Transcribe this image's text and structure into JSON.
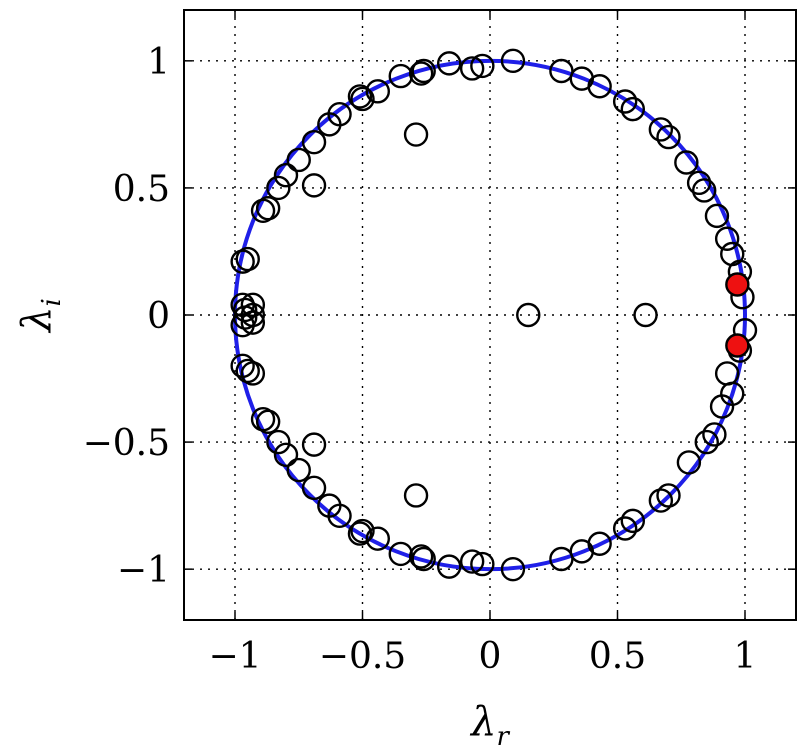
{
  "chart_data": {
    "type": "scatter",
    "title": "",
    "xlabel": "λ_r",
    "ylabel": "λ_i",
    "xlabel_main": "λ",
    "xlabel_sub": "r",
    "ylabel_main": "λ",
    "ylabel_sub": "i",
    "xlim": [
      -1.2,
      1.2
    ],
    "ylim": [
      -1.2,
      1.2
    ],
    "xticks": [
      -1,
      -0.5,
      0,
      0.5,
      1
    ],
    "yticks": [
      -1,
      -0.5,
      0,
      0.5,
      1
    ],
    "xtick_labels": [
      "−1",
      "−0.5",
      "0",
      "0.5",
      "1"
    ],
    "ytick_labels": [
      "−1",
      "−0.5",
      "0",
      "0.5",
      "1"
    ],
    "grid": true,
    "grid_style": "dotted",
    "unit_circle": {
      "radius": 1,
      "color": "#1f1fe8"
    },
    "series": [
      {
        "marker": "open-circle",
        "color": "#000000",
        "points": [
          [
            -0.16,
            0.99
          ],
          [
            0.09,
            1.0
          ],
          [
            -0.03,
            0.98
          ],
          [
            -0.07,
            0.97
          ],
          [
            0.28,
            0.96
          ],
          [
            0.36,
            0.93
          ],
          [
            0.43,
            0.9
          ],
          [
            0.53,
            0.84
          ],
          [
            0.56,
            0.81
          ],
          [
            0.67,
            0.73
          ],
          [
            0.7,
            0.7
          ],
          [
            0.77,
            0.6
          ],
          [
            0.82,
            0.52
          ],
          [
            0.84,
            0.49
          ],
          [
            0.89,
            0.39
          ],
          [
            0.93,
            0.3
          ],
          [
            0.95,
            0.24
          ],
          [
            0.98,
            0.17
          ],
          [
            0.99,
            0.07
          ],
          [
            1.0,
            -0.06
          ],
          [
            0.98,
            -0.14
          ],
          [
            0.93,
            -0.23
          ],
          [
            0.95,
            -0.31
          ],
          [
            0.91,
            -0.36
          ],
          [
            0.88,
            -0.47
          ],
          [
            0.85,
            -0.5
          ],
          [
            0.78,
            -0.58
          ],
          [
            0.7,
            -0.71
          ],
          [
            0.67,
            -0.73
          ],
          [
            0.56,
            -0.81
          ],
          [
            0.53,
            -0.84
          ],
          [
            0.43,
            -0.9
          ],
          [
            0.36,
            -0.93
          ],
          [
            0.28,
            -0.96
          ],
          [
            0.09,
            -1.0
          ],
          [
            -0.03,
            -0.98
          ],
          [
            -0.07,
            -0.97
          ],
          [
            -0.16,
            -0.99
          ],
          [
            -0.26,
            -0.96
          ],
          [
            -0.27,
            -0.95
          ],
          [
            -0.35,
            -0.94
          ],
          [
            -0.44,
            -0.88
          ],
          [
            -0.5,
            -0.85
          ],
          [
            -0.51,
            -0.86
          ],
          [
            -0.59,
            -0.79
          ],
          [
            -0.63,
            -0.75
          ],
          [
            -0.69,
            -0.68
          ],
          [
            -0.75,
            -0.61
          ],
          [
            -0.8,
            -0.55
          ],
          [
            -0.83,
            -0.5
          ],
          [
            -0.87,
            -0.42
          ],
          [
            -0.89,
            -0.41
          ],
          [
            -0.93,
            -0.23
          ],
          [
            -0.97,
            -0.2
          ],
          [
            -0.95,
            -0.22
          ],
          [
            -0.97,
            -0.04
          ],
          [
            -0.96,
            0.02
          ],
          [
            -0.96,
            -0.01
          ],
          [
            -0.93,
            0.0
          ],
          [
            -0.93,
            -0.03
          ],
          [
            -0.97,
            0.04
          ],
          [
            -0.93,
            0.04
          ],
          [
            -0.97,
            0.21
          ],
          [
            -0.95,
            0.22
          ],
          [
            -0.89,
            0.41
          ],
          [
            -0.87,
            0.42
          ],
          [
            -0.83,
            0.5
          ],
          [
            -0.8,
            0.55
          ],
          [
            -0.75,
            0.61
          ],
          [
            -0.69,
            0.68
          ],
          [
            -0.63,
            0.75
          ],
          [
            -0.59,
            0.79
          ],
          [
            -0.51,
            0.86
          ],
          [
            -0.5,
            0.85
          ],
          [
            -0.44,
            0.88
          ],
          [
            -0.35,
            0.94
          ],
          [
            -0.27,
            0.95
          ],
          [
            -0.26,
            0.96
          ],
          [
            -0.29,
            0.71
          ],
          [
            -0.29,
            -0.71
          ],
          [
            -0.69,
            0.51
          ],
          [
            -0.69,
            -0.51
          ],
          [
            0.15,
            0.0
          ],
          [
            0.61,
            0.0
          ]
        ]
      },
      {
        "marker": "filled-circle",
        "color": "#ee1111",
        "points": [
          [
            0.97,
            0.12
          ],
          [
            0.97,
            -0.12
          ]
        ]
      }
    ]
  }
}
